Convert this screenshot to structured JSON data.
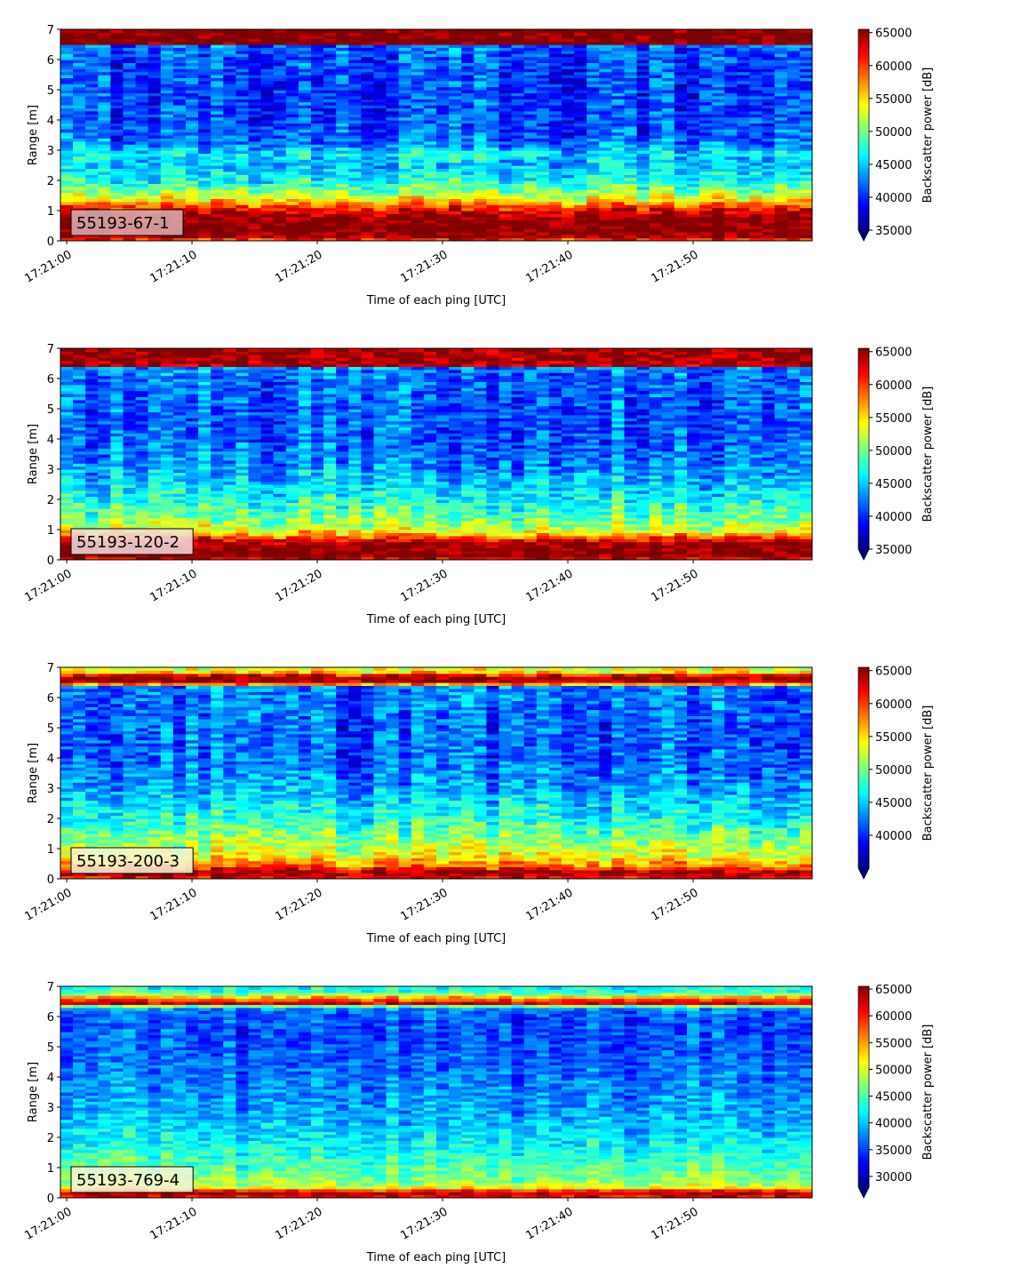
{
  "colormap": [
    "#00007f",
    "#0000ff",
    "#007fff",
    "#00ffff",
    "#7fff7f",
    "#ffff00",
    "#ff7f00",
    "#ff0000",
    "#7f0000"
  ],
  "chart_data": [
    {
      "type": "heatmap",
      "label": "55193-67-1",
      "label_bg": "#dbb2b2",
      "xlabel": "Time of each ping [UTC]",
      "ylabel": "Range [m]",
      "xticks": [
        "17:21:00",
        "17:21:10",
        "17:21:20",
        "17:21:30",
        "17:21:40",
        "17:21:50"
      ],
      "xlim_seconds": [
        -0.5,
        59.5
      ],
      "ylim": [
        0,
        7
      ],
      "yticks": [
        0,
        1,
        2,
        3,
        4,
        5,
        6,
        7
      ],
      "colorbar_label": "Backscatter power [dB]",
      "clim": [
        35000,
        65500
      ],
      "colorbar_ticks": [
        35000,
        40000,
        45000,
        50000,
        55000,
        60000,
        65000
      ],
      "colorbar_extend": "min",
      "profile": {
        "range_m": [
          0.0,
          0.1,
          0.3,
          0.6,
          0.9,
          1.1,
          1.3,
          1.6,
          2.0,
          2.5,
          2.9,
          3.3,
          4.0,
          5.0,
          6.0,
          6.45,
          6.5,
          7.0
        ],
        "power": [
          58000,
          64000,
          66000,
          66000,
          64000,
          61000,
          56000,
          51000,
          47000,
          44500,
          46000,
          42000,
          41000,
          40500,
          41000,
          42000,
          66000,
          66000
        ]
      }
    },
    {
      "type": "heatmap",
      "label": "55193-120-2",
      "label_bg": "#f0dede",
      "xlabel": "Time of each ping [UTC]",
      "ylabel": "Range [m]",
      "xticks": [
        "17:21:00",
        "17:21:10",
        "17:21:20",
        "17:21:30",
        "17:21:40",
        "17:21:50"
      ],
      "xlim_seconds": [
        -0.5,
        59.5
      ],
      "ylim": [
        0,
        7
      ],
      "yticks": [
        0,
        1,
        2,
        3,
        4,
        5,
        6,
        7
      ],
      "colorbar_label": "Backscatter power [dB]",
      "clim": [
        35000,
        65500
      ],
      "colorbar_ticks": [
        35000,
        40000,
        45000,
        50000,
        55000,
        60000,
        65000
      ],
      "colorbar_extend": "min",
      "profile": {
        "range_m": [
          0.0,
          0.1,
          0.3,
          0.6,
          0.8,
          1.0,
          1.4,
          2.0,
          2.6,
          3.2,
          4.0,
          5.0,
          6.0,
          6.35,
          6.45,
          7.0
        ],
        "power": [
          60000,
          65500,
          66000,
          64000,
          58000,
          53000,
          50000,
          47000,
          45000,
          43000,
          41500,
          41500,
          42000,
          43000,
          64000,
          65000
        ]
      }
    },
    {
      "type": "heatmap",
      "label": "55193-200-3",
      "label_bg": "#f5f5d8",
      "xlabel": "Time of each ping [UTC]",
      "ylabel": "Range [m]",
      "xticks": [
        "17:21:00",
        "17:21:10",
        "17:21:20",
        "17:21:30",
        "17:21:40",
        "17:21:50"
      ],
      "xlim_seconds": [
        -0.5,
        59.5
      ],
      "ylim": [
        0,
        7
      ],
      "yticks": [
        0,
        1,
        2,
        3,
        4,
        5,
        6,
        7
      ],
      "colorbar_label": "Backscatter power [dB]",
      "clim": [
        35000,
        65500
      ],
      "colorbar_ticks": [
        40000,
        45000,
        50000,
        55000,
        60000,
        65000
      ],
      "colorbar_extend": "min",
      "profile": {
        "range_m": [
          0.0,
          0.1,
          0.25,
          0.45,
          0.7,
          1.0,
          1.5,
          2.0,
          2.6,
          3.2,
          4.0,
          5.0,
          6.0,
          6.35,
          6.5,
          6.7,
          6.85,
          7.0
        ],
        "power": [
          58000,
          65000,
          64000,
          58000,
          54000,
          52000,
          49500,
          47000,
          45000,
          43000,
          41500,
          41500,
          42000,
          42500,
          64000,
          65000,
          55000,
          52000
        ]
      }
    },
    {
      "type": "heatmap",
      "label": "55193-769-4",
      "label_bg": "#f2f5dc",
      "xlabel": "Time of each ping [UTC]",
      "ylabel": "Range [m]",
      "xticks": [
        "17:21:00",
        "17:21:10",
        "17:21:20",
        "17:21:30",
        "17:21:40",
        "17:21:50"
      ],
      "xlim_seconds": [
        -0.5,
        59.5
      ],
      "ylim": [
        0,
        7
      ],
      "yticks": [
        0,
        1,
        2,
        3,
        4,
        5,
        6,
        7
      ],
      "colorbar_label": "Backscatter power [dB]",
      "clim": [
        28000,
        65500
      ],
      "colorbar_ticks": [
        30000,
        35000,
        40000,
        45000,
        50000,
        55000,
        60000,
        65000
      ],
      "colorbar_extend": "min",
      "profile": {
        "range_m": [
          0.0,
          0.1,
          0.2,
          0.35,
          0.5,
          0.9,
          1.5,
          2.0,
          3.0,
          4.0,
          5.0,
          6.0,
          6.3,
          6.45,
          6.6,
          6.8,
          7.0
        ],
        "power": [
          58000,
          64000,
          63000,
          51000,
          48000,
          45500,
          43000,
          41000,
          38500,
          37000,
          35500,
          35500,
          38000,
          62000,
          57000,
          44000,
          42000
        ]
      }
    }
  ]
}
